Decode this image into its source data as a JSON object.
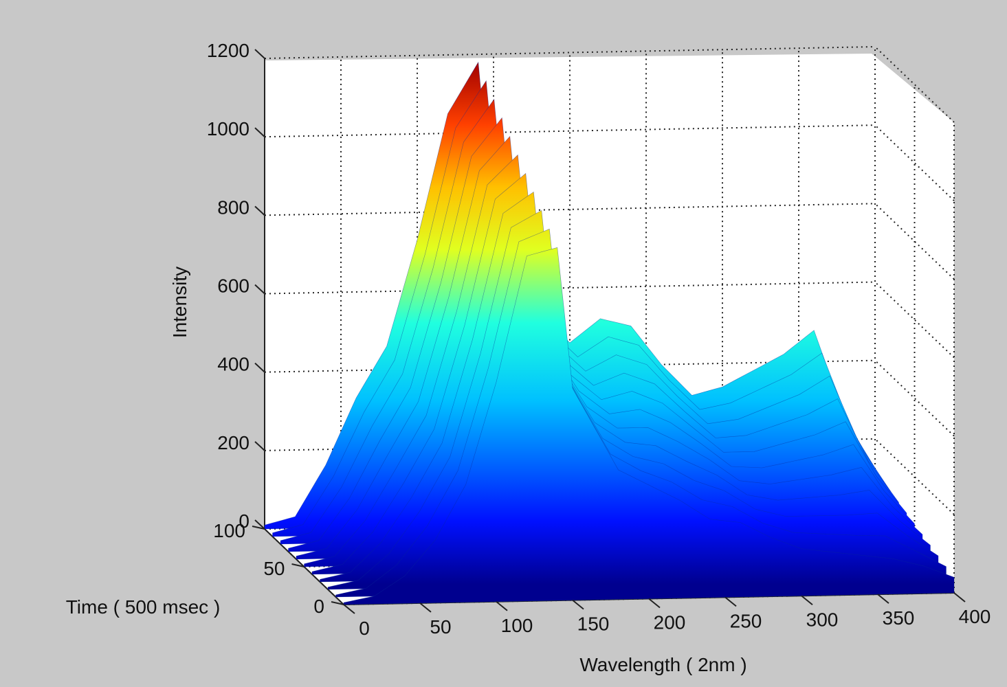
{
  "chart_data": {
    "type": "surface3d",
    "title": "",
    "xlabel": "Wavelength ( 2nm )",
    "ylabel": "Time ( 500 msec )",
    "zlabel": "Intensity",
    "xlim": [
      0,
      400
    ],
    "ylim": [
      0,
      100
    ],
    "zlim": [
      0,
      1200
    ],
    "x_ticks": [
      "0",
      "50",
      "100",
      "150",
      "200",
      "250",
      "300",
      "350",
      "400"
    ],
    "y_ticks": [
      "0",
      "50",
      "100"
    ],
    "z_ticks": [
      "0",
      "200",
      "400",
      "600",
      "800",
      "1000",
      "1200"
    ],
    "grid": true,
    "colormap": "jet",
    "time_slices": [
      0,
      10,
      20,
      30,
      40,
      50,
      60,
      70,
      80,
      90,
      100
    ],
    "front_profile": {
      "wavelength": [
        0,
        20,
        40,
        60,
        80,
        100,
        120,
        140,
        150,
        160,
        180,
        200,
        220,
        240,
        260,
        280,
        300,
        320,
        340,
        360,
        380,
        400
      ],
      "intensity": [
        5,
        20,
        70,
        160,
        300,
        560,
        880,
        900,
        540,
        470,
        330,
        290,
        250,
        200,
        190,
        150,
        120,
        110,
        100,
        90,
        70,
        40
      ]
    },
    "back_profile": {
      "wavelength": [
        0,
        20,
        40,
        60,
        80,
        100,
        120,
        140,
        150,
        160,
        180,
        200,
        220,
        240,
        260,
        280,
        300,
        320,
        340,
        360,
        380,
        400
      ],
      "intensity": [
        10,
        30,
        160,
        330,
        460,
        730,
        1050,
        1180,
        760,
        640,
        540,
        460,
        520,
        500,
        400,
        320,
        340,
        380,
        420,
        480,
        260,
        120
      ]
    }
  }
}
